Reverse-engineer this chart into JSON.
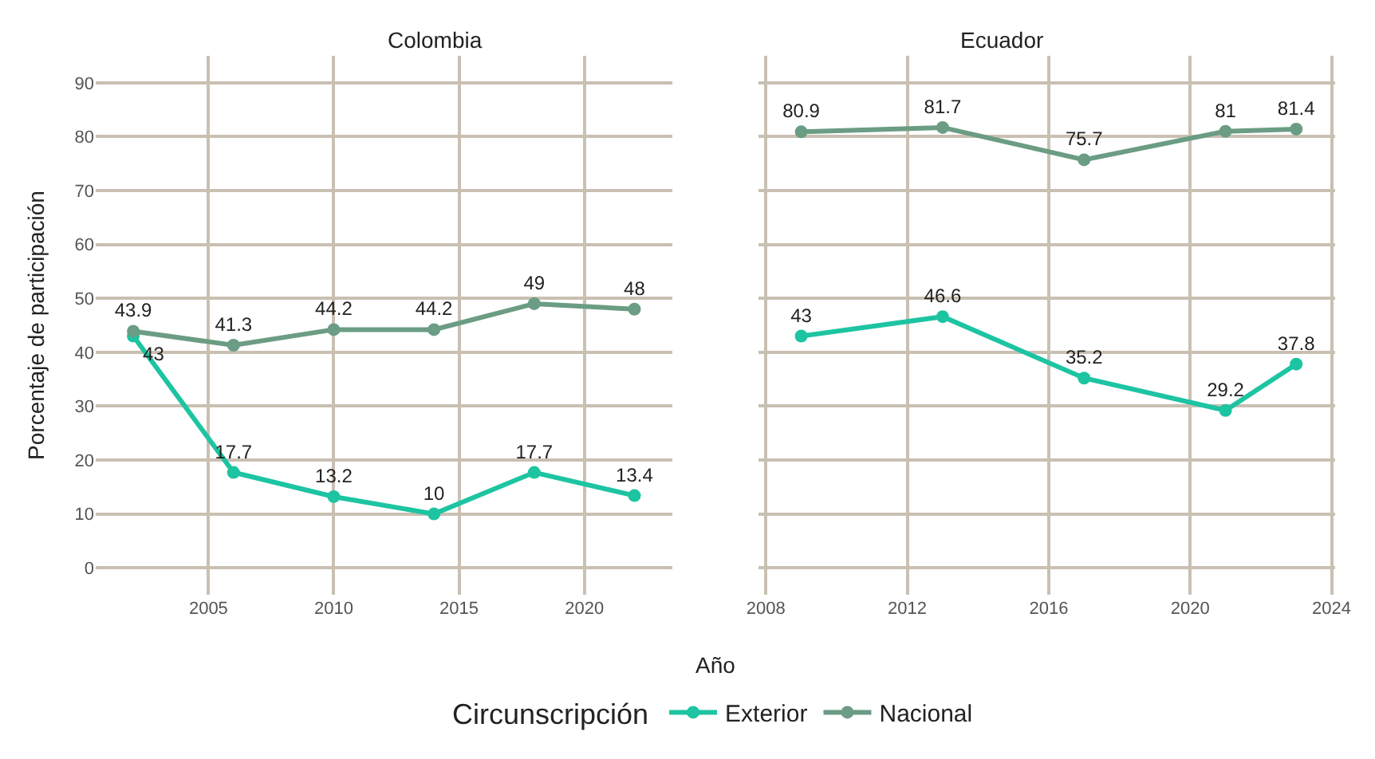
{
  "chart_data": [
    {
      "type": "line",
      "title": "Colombia",
      "xlabel": "Año",
      "ylabel": "Porcentaje de participación",
      "legend_title": "Circunscripción",
      "x": [
        2002,
        2006,
        2010,
        2014,
        2018,
        2022
      ],
      "series": [
        {
          "name": "Exterior",
          "color": "#1dc4a2",
          "values": [
            43,
            17.7,
            13.2,
            10,
            17.7,
            13.4
          ]
        },
        {
          "name": "Nacional",
          "color": "#6b9c84",
          "values": [
            43.9,
            41.3,
            44.2,
            44.2,
            49,
            48
          ]
        }
      ],
      "xlim": [
        2000.5,
        2023.5
      ],
      "xticks": [
        2005,
        2010,
        2015,
        2020
      ],
      "ylim": [
        -5,
        95
      ],
      "yticks": [
        0,
        10,
        20,
        30,
        40,
        50,
        60,
        70,
        80,
        90
      ],
      "grid": true,
      "marker": "circle",
      "line_style": "solid",
      "data_labels": true,
      "legend": "bottom"
    },
    {
      "type": "line",
      "title": "Ecuador",
      "x": [
        2009,
        2013,
        2017,
        2021,
        2023
      ],
      "series": [
        {
          "name": "Exterior",
          "color": "#1dc4a2",
          "values": [
            43,
            46.6,
            35.2,
            29.2,
            37.8
          ]
        },
        {
          "name": "Nacional",
          "color": "#6b9c84",
          "values": [
            80.9,
            81.7,
            75.7,
            81,
            81.4
          ]
        }
      ],
      "xlim": [
        2007.8,
        2024.1
      ],
      "xticks": [
        2008,
        2012,
        2016,
        2020,
        2024
      ],
      "ylim": [
        -5,
        95
      ],
      "yticks": [
        0,
        10,
        20,
        30,
        40,
        50,
        60,
        70,
        80,
        90
      ],
      "grid": true,
      "marker": "circle",
      "line_style": "solid",
      "data_labels": true,
      "tick_labels": "x",
      "legend": "bottom"
    }
  ]
}
